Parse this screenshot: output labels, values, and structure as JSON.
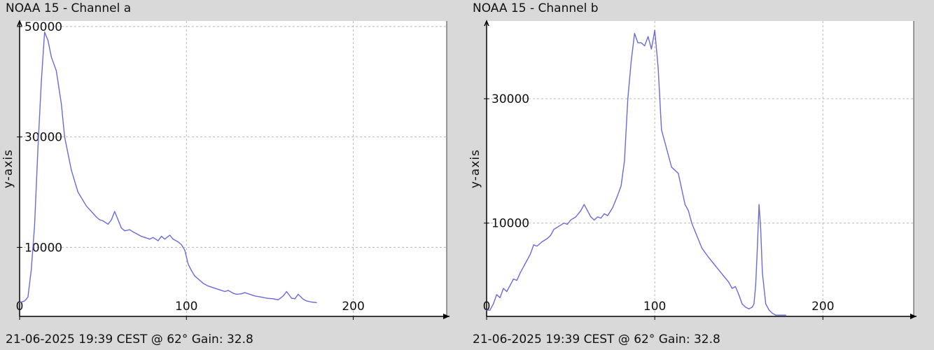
{
  "chart_data": [
    {
      "type": "line",
      "title": "NOAA 15 - Channel a",
      "footer": "21-06-2025 19:39 CEST @ 62° Gain: 32.8",
      "ylabel": "y-axis",
      "xlabel": "",
      "xlim": [
        0,
        256
      ],
      "ylim": [
        -2500,
        51000
      ],
      "x_ticks": [
        0,
        100,
        200
      ],
      "y_ticks": [
        10000,
        30000,
        50000
      ],
      "grid": true,
      "line_color": "#6a6ae0",
      "series": [
        {
          "x": [
            0,
            3,
            5,
            7,
            9,
            11,
            13,
            15,
            17,
            19,
            22,
            25,
            27,
            29,
            31,
            33,
            35,
            37,
            40,
            43,
            46,
            48,
            50,
            53,
            55,
            57,
            59,
            61,
            63,
            66,
            68,
            70,
            73,
            75,
            78,
            80,
            83,
            85,
            87,
            90,
            92,
            95,
            97,
            99,
            101,
            103,
            105,
            107,
            110,
            113,
            115,
            118,
            120,
            123,
            125,
            128,
            130,
            133,
            135,
            138,
            141,
            145,
            148,
            152,
            155,
            158,
            160,
            163,
            165,
            167,
            170,
            172,
            175,
            178
          ],
          "y": [
            0,
            300,
            1000,
            6000,
            14000,
            28000,
            40000,
            49000,
            47500,
            44500,
            42000,
            36000,
            30000,
            27000,
            24000,
            22000,
            20000,
            19000,
            17500,
            16500,
            15500,
            15000,
            14800,
            14200,
            15000,
            16500,
            15000,
            13500,
            13000,
            13200,
            12800,
            12500,
            12000,
            11800,
            11500,
            11800,
            11200,
            12000,
            11500,
            12200,
            11500,
            11000,
            10500,
            9500,
            7000,
            5800,
            4800,
            4300,
            3500,
            3000,
            2800,
            2500,
            2300,
            2000,
            2200,
            1700,
            1500,
            1600,
            1800,
            1500,
            1200,
            1000,
            800,
            700,
            500,
            1200,
            2000,
            800,
            700,
            1500,
            600,
            300,
            100,
            0
          ]
        }
      ]
    },
    {
      "type": "line",
      "title": "NOAA 15 - Channel b",
      "footer": "21-06-2025 19:39 CEST @ 62° Gain: 32.8",
      "ylabel": "y-axis",
      "xlabel": "",
      "xlim": [
        0,
        254
      ],
      "ylim": [
        -5000,
        42500
      ],
      "x_ticks": [
        0,
        100,
        200
      ],
      "y_ticks": [
        10000,
        30000
      ],
      "grid": true,
      "line_color": "#6a6ae0",
      "series": [
        {
          "x": [
            0,
            2,
            4,
            6,
            8,
            10,
            12,
            14,
            16,
            18,
            20,
            23,
            26,
            28,
            30,
            33,
            36,
            38,
            40,
            43,
            46,
            48,
            50,
            53,
            56,
            58,
            60,
            62,
            64,
            66,
            68,
            70,
            72,
            75,
            78,
            80,
            82,
            84,
            86,
            88,
            90,
            92,
            94,
            96,
            98,
            100,
            102,
            104,
            106,
            108,
            110,
            112,
            114,
            116,
            118,
            120,
            122,
            125,
            128,
            132,
            135,
            138,
            141,
            144,
            146,
            148,
            150,
            152,
            154,
            156,
            158,
            159,
            160,
            161,
            162,
            163,
            164,
            166,
            168,
            170,
            172,
            175,
            178
          ],
          "y": [
            -4000,
            -4000,
            -3000,
            -1500,
            -2000,
            -500,
            -1000,
            0,
            1000,
            800,
            2000,
            3500,
            5000,
            6500,
            6300,
            7000,
            7500,
            8000,
            9000,
            9500,
            10000,
            9800,
            10500,
            11000,
            12000,
            13000,
            12000,
            11000,
            10500,
            11000,
            10800,
            11500,
            11200,
            12500,
            14500,
            16000,
            20000,
            30000,
            36000,
            40500,
            39000,
            39000,
            38500,
            40000,
            38000,
            41000,
            35000,
            25000,
            23000,
            21000,
            19000,
            18500,
            18000,
            15500,
            13000,
            12000,
            10000,
            8000,
            6000,
            4500,
            3500,
            2500,
            1500,
            500,
            -500,
            -200,
            -1500,
            -3000,
            -3500,
            -3800,
            -3500,
            -3000,
            0,
            6000,
            13000,
            9000,
            2000,
            -3000,
            -4000,
            -4500,
            -4800,
            -4800,
            -4800
          ]
        }
      ]
    }
  ]
}
